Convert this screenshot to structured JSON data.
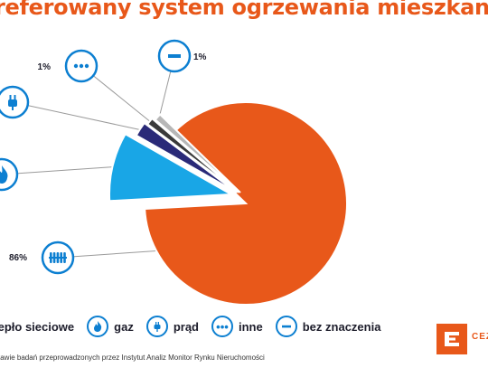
{
  "title": "referowany system ogrzewania mieszkan",
  "chart_data": {
    "type": "pie",
    "title": "referowany system ogrzewania mieszkan",
    "slices": [
      {
        "name": "ciepło sieciowe",
        "value": 86,
        "label": "86%",
        "color": "#e8581a",
        "icon": "radiator-icon"
      },
      {
        "name": "gaz",
        "value": 9,
        "label": "",
        "color": "#19a6e6",
        "icon": "flame-icon"
      },
      {
        "name": "prąd",
        "value": 2,
        "label": "",
        "color": "#2a2a78",
        "icon": "plug-icon"
      },
      {
        "name": "inne",
        "value": 1,
        "label": "1%",
        "color": "#3a3a3a",
        "icon": "dots-icon"
      },
      {
        "name": "bez znaczenia",
        "value": 1,
        "label": "1%",
        "color": "#b7b7b7",
        "icon": "minus-icon"
      }
    ]
  },
  "legend": [
    {
      "label": "iepło sieciowe",
      "icon": "radiator-icon"
    },
    {
      "label": "gaz",
      "icon": "flame-icon"
    },
    {
      "label": "prąd",
      "icon": "plug-icon"
    },
    {
      "label": "inne",
      "icon": "dots-icon"
    },
    {
      "label": "bez znaczenia",
      "icon": "minus-icon"
    }
  ],
  "source": "stawie badań przeprowadzonych przez Instytut Analiz Monitor Rynku Nieruchomości",
  "logo": {
    "text": "CEZ"
  },
  "colors": {
    "accent": "#e8581a",
    "icon_blue": "#0c7fd1",
    "line_gray": "#9a9a9a"
  }
}
